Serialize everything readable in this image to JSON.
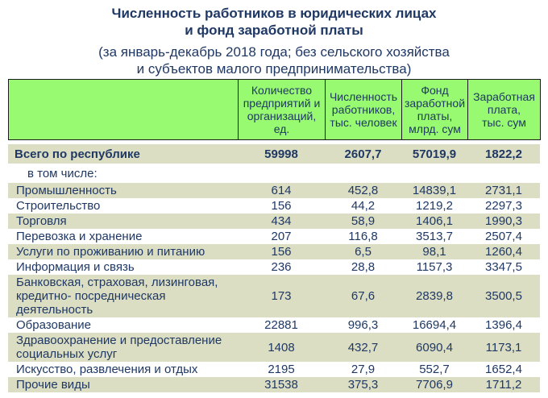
{
  "title": {
    "line1": "Численность работников в юридических лицах",
    "line2": "и фонд заработной платы"
  },
  "subtitle": {
    "line1": "(за январь-декабрь 2018 года; без сельского хозяйства",
    "line2": "и субъектов малого предпринимательства)"
  },
  "colors": {
    "header-bg": "#98FA70",
    "stripe-bg": "#DCDEC3",
    "text-navy": "#1F3864",
    "border-dark": "#1a1a1a",
    "page-bg": "#ffffff"
  },
  "chart_data": {
    "type": "table",
    "title": "Численность работников в юридических лицах и фонд заработной платы",
    "subtitle": "(за январь-декабрь 2018 года; без сельского хозяйства и субъектов малого предпринимательства)",
    "decimal_separator": ",",
    "columns": [
      "",
      "Количество\nпредприятий и\nорганизаций,\nед.",
      "Численность\nработников,\nтыс. человек",
      "Фонд\nзаработной\nплаты,\nмлрд. сум",
      "Заработная\nплата,\nтыс. сум"
    ],
    "total_row": {
      "label": "Всего по республике",
      "values": [
        "59998",
        "2607,7",
        "57019,9",
        "1822,2"
      ]
    },
    "subheading": "в том числе:",
    "rows": [
      {
        "label": "Промышленность",
        "values": [
          "614",
          "452,8",
          "14839,1",
          "2731,1"
        ]
      },
      {
        "label": "Строительство",
        "values": [
          "156",
          "44,2",
          "1219,2",
          "2297,3"
        ]
      },
      {
        "label": "Торговля",
        "values": [
          "434",
          "58,9",
          "1406,1",
          "1990,3"
        ]
      },
      {
        "label": "Перевозка и хранение",
        "values": [
          "207",
          "116,8",
          "3513,7",
          "2507,4"
        ]
      },
      {
        "label": "Услуги по проживанию и питанию",
        "values": [
          "156",
          "6,5",
          "98,1",
          "1260,4"
        ]
      },
      {
        "label": "Информация и связь",
        "values": [
          "236",
          "28,8",
          "1157,3",
          "3347,5"
        ]
      },
      {
        "label": "Банковская, страховая, лизинговая,\nкредитно- посредническая\nдеятельность",
        "values": [
          "173",
          "67,6",
          "2839,8",
          "3500,5"
        ]
      },
      {
        "label": "Образование",
        "values": [
          "22881",
          "996,3",
          "16694,4",
          "1396,4"
        ]
      },
      {
        "label": "Здравоохранение и предоставление\nсоциальных услуг",
        "values": [
          "1408",
          "432,7",
          "6090,4",
          "1173,1"
        ]
      },
      {
        "label": "Искусство, развлечения и отдых",
        "values": [
          "2195",
          "27,9",
          "552,7",
          "1652,4"
        ]
      },
      {
        "label": "Прочие виды",
        "values": [
          "31538",
          "375,3",
          "7706,9",
          "1711,2"
        ]
      }
    ]
  }
}
